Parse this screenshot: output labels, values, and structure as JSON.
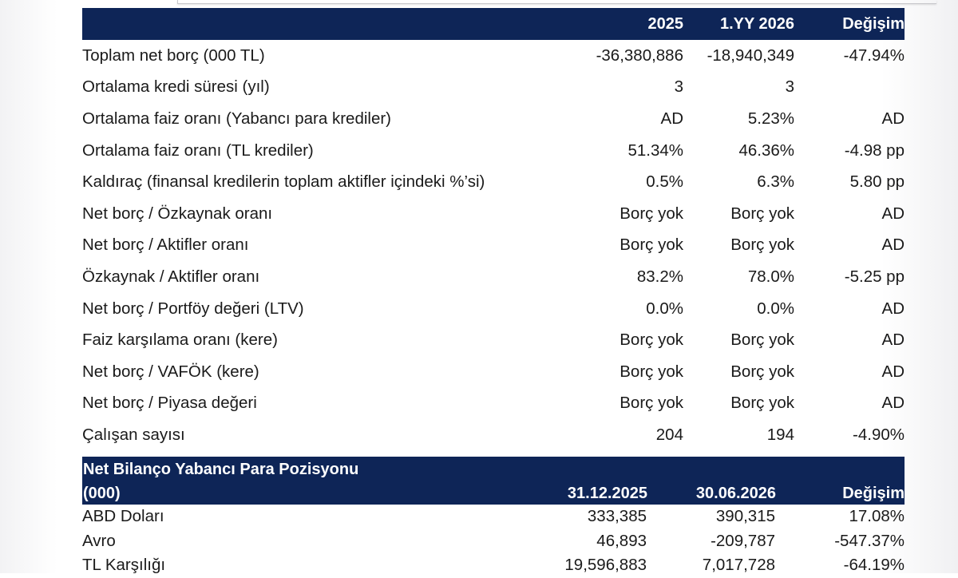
{
  "table1": {
    "headers": [
      "2025",
      "1.YY 2026",
      "Değişim"
    ],
    "rows": [
      {
        "label": "Toplam net borç (000 TL)",
        "v2025": "-36,380,886",
        "v2026": "-18,940,349",
        "change": "-47.94%"
      },
      {
        "label": "Ortalama kredi süresi (yıl)",
        "v2025": "3",
        "v2026": "3",
        "change": ""
      },
      {
        "label": "Ortalama faiz oranı (Yabancı para krediler)",
        "v2025": "AD",
        "v2026": "5.23%",
        "change": "AD"
      },
      {
        "label": "Ortalama faiz oranı (TL krediler)",
        "v2025": "51.34%",
        "v2026": "46.36%",
        "change": "-4.98 pp"
      },
      {
        "label": "Kaldıraç (finansal kredilerin toplam aktifler içindeki %’si)",
        "v2025": "0.5%",
        "v2026": "6.3%",
        "change": "5.80 pp"
      },
      {
        "label": "Net borç / Özkaynak oranı",
        "v2025": "Borç yok",
        "v2026": "Borç yok",
        "change": "AD"
      },
      {
        "label": "Net borç / Aktifler oranı",
        "v2025": "Borç yok",
        "v2026": "Borç yok",
        "change": "AD"
      },
      {
        "label": "Özkaynak / Aktifler oranı",
        "v2025": "83.2%",
        "v2026": "78.0%",
        "change": "-5.25 pp"
      },
      {
        "label": "Net borç / Portföy değeri (LTV)",
        "v2025": "0.0%",
        "v2026": "0.0%",
        "change": "AD"
      },
      {
        "label": "Faiz karşılama oranı (kere)",
        "v2025": "Borç yok",
        "v2026": "Borç yok",
        "change": "AD"
      },
      {
        "label": "Net borç / VAFÖK (kere)",
        "v2025": "Borç yok",
        "v2026": "Borç yok",
        "change": "AD"
      },
      {
        "label": "Net borç / Piyasa değeri",
        "v2025": "Borç yok",
        "v2026": "Borç yok",
        "change": "AD"
      },
      {
        "label": "Çalışan sayısı",
        "v2025": "204",
        "v2026": "194",
        "change": "-4.90%"
      }
    ]
  },
  "table2": {
    "title_line1": "Net Bilanço Yabancı Para Pozisyonu",
    "title_line2": "(000)",
    "headers": [
      "31.12.2025",
      "30.06.2026",
      "Değişim"
    ],
    "rows": [
      {
        "label": "ABD Doları",
        "v1": "333,385",
        "v2": "390,315",
        "change": "17.08%"
      },
      {
        "label": "Avro",
        "v1": "46,893",
        "v2": "-209,787",
        "change": "-547.37%"
      },
      {
        "label": "TL Karşılığı",
        "v1": "19,596,883",
        "v2": "7,017,728",
        "change": "-64.19%"
      }
    ]
  },
  "colors": {
    "header_bg": "#0e2557",
    "header_text": "#ffffff"
  }
}
